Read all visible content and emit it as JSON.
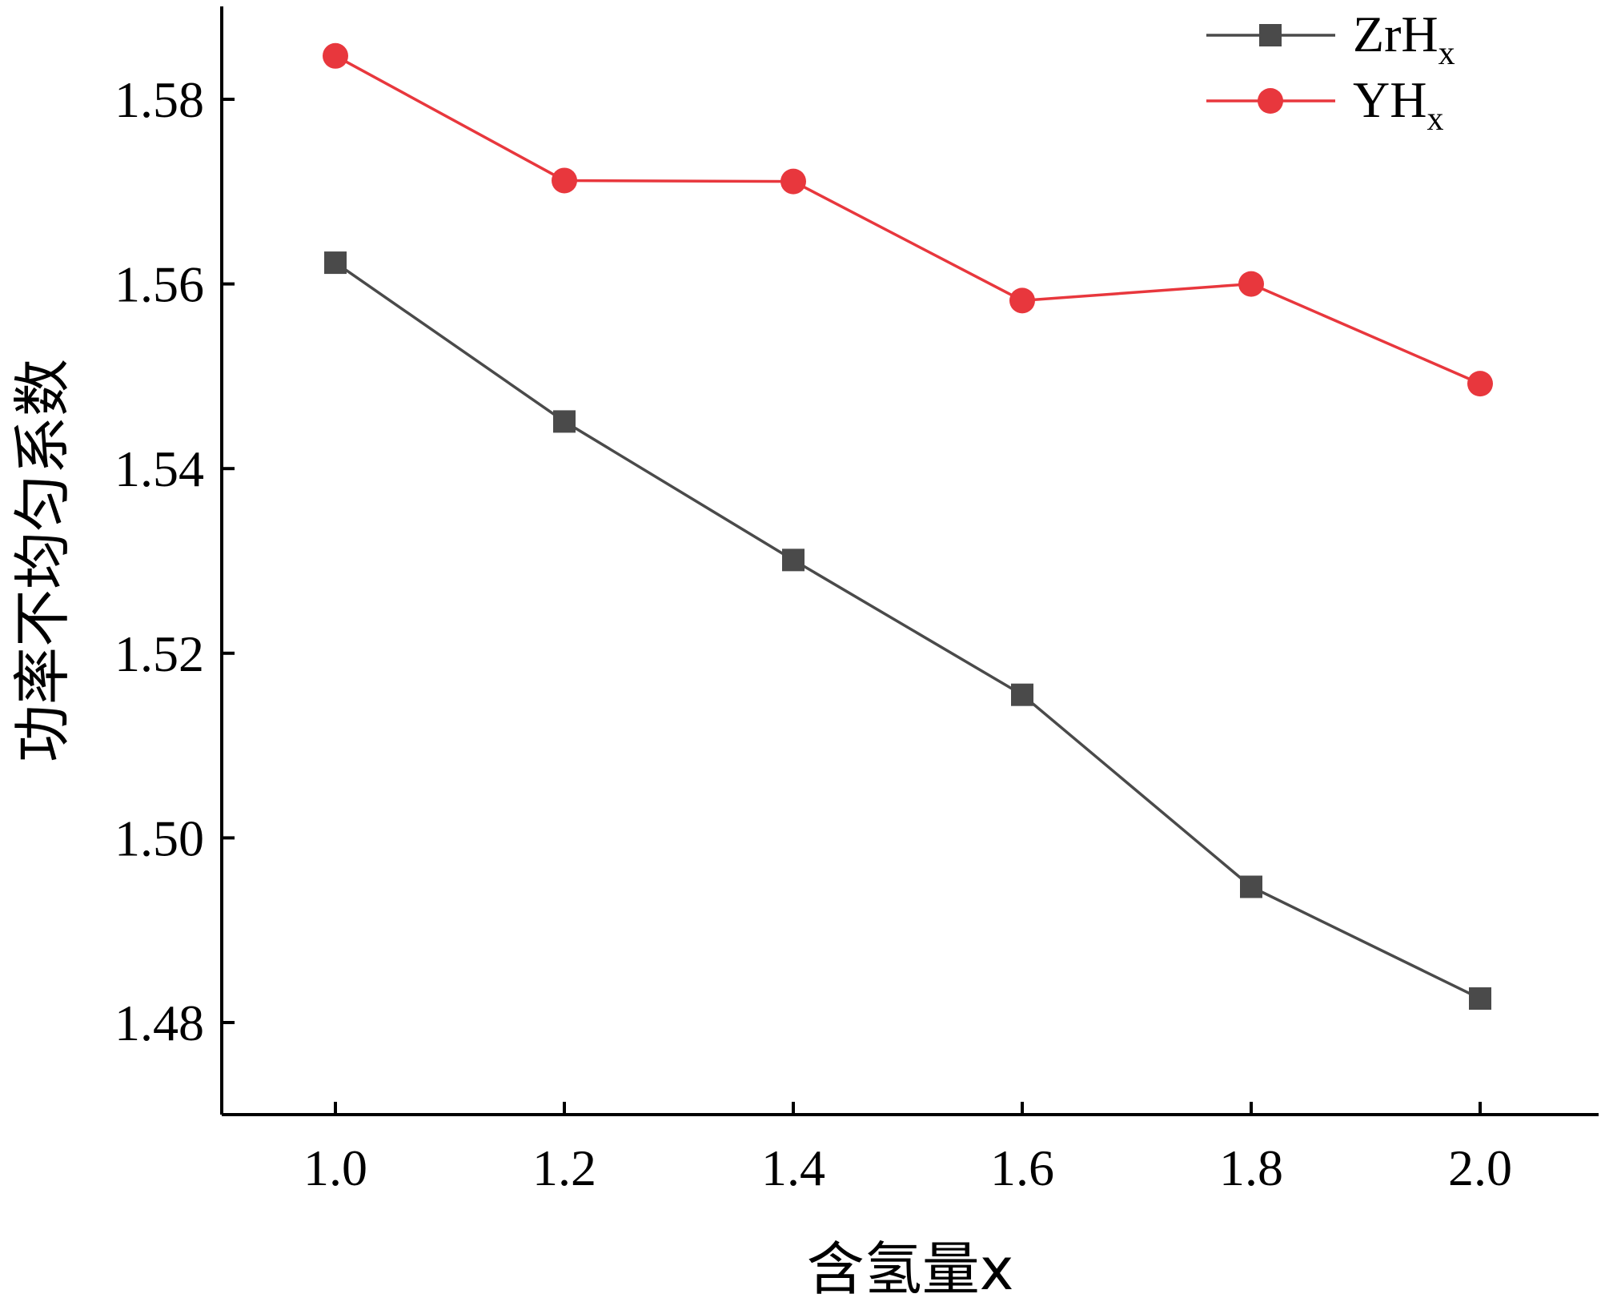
{
  "chart_data": {
    "type": "line",
    "title": "",
    "xlabel": "含氢量x",
    "ylabel": "功率不均匀系数",
    "x": [
      1.0,
      1.2,
      1.4,
      1.6,
      1.8,
      2.0
    ],
    "x_ticks": [
      1.0,
      1.2,
      1.4,
      1.6,
      1.8,
      2.0
    ],
    "x_tick_labels": [
      "1.0",
      "1.2",
      "1.4",
      "1.6",
      "1.8",
      "2.0"
    ],
    "y_ticks": [
      1.48,
      1.5,
      1.52,
      1.54,
      1.56,
      1.58
    ],
    "y_tick_labels": [
      "1.48",
      "1.50",
      "1.52",
      "1.54",
      "1.56",
      "1.58"
    ],
    "xlim": [
      0.9,
      2.1
    ],
    "ylim": [
      1.47,
      1.59
    ],
    "grid": false,
    "legend_position": "top-right",
    "series": [
      {
        "name": "ZrH",
        "subscript": "x",
        "marker": "square",
        "color": "#4a4a4a",
        "values": [
          1.5623,
          1.5451,
          1.5301,
          1.5155,
          1.4947,
          1.4826
        ]
      },
      {
        "name": "YH",
        "subscript": "x",
        "marker": "circle",
        "color": "#e8373d",
        "values": [
          1.5847,
          1.5712,
          1.5711,
          1.5582,
          1.56,
          1.5492
        ]
      }
    ]
  }
}
